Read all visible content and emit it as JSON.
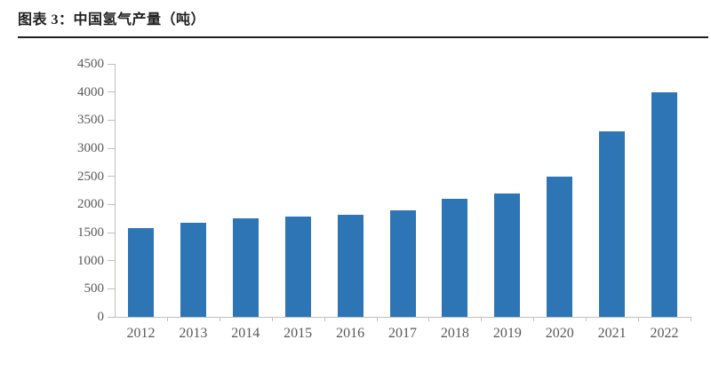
{
  "header": {
    "title": "图表 3：中国氢气产量（吨）"
  },
  "colors": {
    "bar": "#2e75b6",
    "axis_line": "#bfbfbf",
    "tick_label": "#595959",
    "title_text": "#1f1f1f",
    "rule": "#1f1f1f",
    "background": "#ffffff"
  },
  "chart_data": {
    "type": "bar",
    "title": "中国氢气产量（吨）",
    "categories": [
      "2012",
      "2013",
      "2014",
      "2015",
      "2016",
      "2017",
      "2018",
      "2019",
      "2020",
      "2021",
      "2022"
    ],
    "values": [
      1580,
      1680,
      1750,
      1780,
      1820,
      1900,
      2100,
      2200,
      2500,
      3300,
      4000
    ],
    "xlabel": "",
    "ylabel": "",
    "ylim": [
      0,
      4500
    ],
    "yticks": [
      0,
      500,
      1000,
      1500,
      2000,
      2500,
      3000,
      3500,
      4000,
      4500
    ],
    "grid": false,
    "legend": false,
    "bar_color": "#2e75b6"
  }
}
